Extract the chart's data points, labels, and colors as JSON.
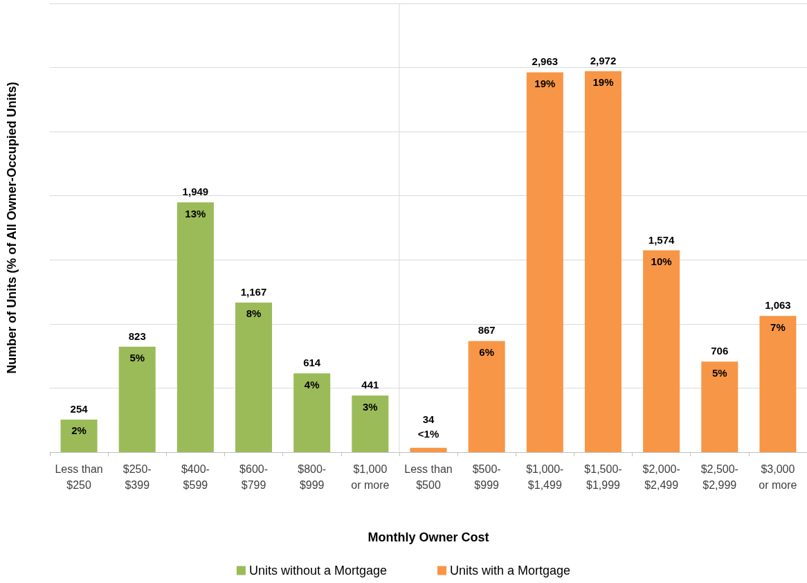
{
  "chart_data": {
    "type": "bar",
    "xlabel": "Monthly Owner Cost",
    "ylabel": "Number of Units (% of All Owner-Occupied Units)",
    "categories": [
      "Less than\n$250",
      "$250-\n$399",
      "$400-\n$599",
      "$600-\n$799",
      "$800-\n$999",
      "$1,000\nor more",
      "Less than\n$500",
      "$500-\n$999",
      "$1,000-\n$1,499",
      "$1,500-\n$1,999",
      "$2,000-\n$2,499",
      "$2,500-\n$2,999",
      "$3,000\nor more"
    ],
    "series": [
      {
        "name": "Units without a Mortgage",
        "color": "#9bbb59",
        "values": [
          254,
          823,
          1949,
          1167,
          614,
          441,
          null,
          null,
          null,
          null,
          null,
          null,
          null
        ],
        "value_labels": [
          "254",
          "823",
          "1,949",
          "1,167",
          "614",
          "441",
          null,
          null,
          null,
          null,
          null,
          null,
          null
        ]
      },
      {
        "name": "Units with a Mortgage",
        "color": "#f79646",
        "values": [
          null,
          null,
          null,
          null,
          null,
          null,
          34,
          867,
          2963,
          2972,
          1574,
          706,
          1063
        ],
        "value_labels": [
          null,
          null,
          null,
          null,
          null,
          null,
          "34",
          "867",
          "2,963",
          "2,972",
          "1,574",
          "706",
          "1,063"
        ]
      }
    ],
    "ylim": [
      0,
      3500
    ],
    "yticks": [
      {
        "value": 0,
        "label": null
      },
      {
        "value": 500,
        "label": null
      },
      {
        "value": 1000,
        "label": null
      },
      {
        "value": 1500,
        "label": null
      },
      {
        "value": 2000,
        "label": null
      },
      {
        "value": 2500,
        "label": null
      },
      {
        "value": 3000,
        "label": null
      },
      {
        "value": 3500,
        "label": null
      }
    ],
    "tick_labels": "x",
    "grid": "y",
    "legend": "bottom",
    "annotations": [
      {
        "text": "2%",
        "x": "Less than\n$250",
        "y": 254
      },
      {
        "text": "5%",
        "x": "$250-\n$399",
        "y": 823
      },
      {
        "text": "13%",
        "x": "$400-\n$599",
        "y": 1949
      },
      {
        "text": "8%",
        "x": "$600-\n$799",
        "y": 1167
      },
      {
        "text": "4%",
        "x": "$800-\n$999",
        "y": 614
      },
      {
        "text": "3%",
        "x": "$1,000\nor more",
        "y": 441
      },
      {
        "text": "<1%",
        "x": "Less than\n$500",
        "y": 34
      },
      {
        "text": "6%",
        "x": "$500-\n$999",
        "y": 867
      },
      {
        "text": "19%",
        "x": "$1,000-\n$1,499",
        "y": 2963
      },
      {
        "text": "19%",
        "x": "$1,500-\n$1,999",
        "y": 2972
      },
      {
        "text": "10%",
        "x": "$2,000-\n$2,499",
        "y": 1574
      },
      {
        "text": "5%",
        "x": "$2,500-\n$2,999",
        "y": 706
      },
      {
        "text": "7%",
        "x": "$3,000\nor more",
        "y": 1063
      }
    ]
  }
}
